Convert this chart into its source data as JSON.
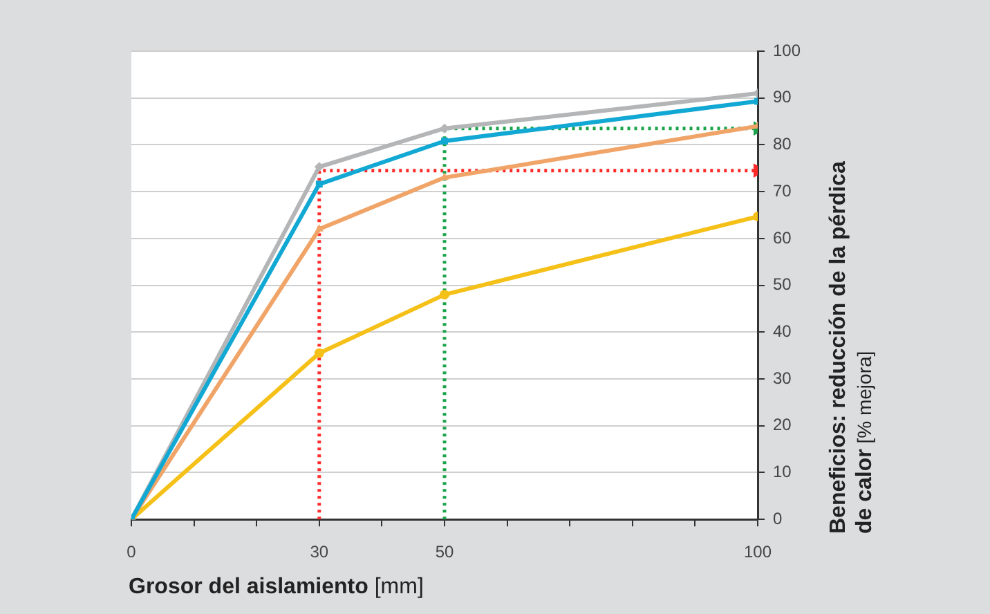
{
  "chart_data": {
    "type": "line",
    "xlabel": "Grosor del aislamiento [mm]",
    "ylabel": "Beneficios: reducción de la pérdica de calor [% mejora]",
    "xlim": [
      0,
      100
    ],
    "xticks": [
      0,
      {
        "value": 10,
        "label": null
      },
      {
        "value": 20,
        "label": null
      },
      30,
      {
        "value": 40,
        "label": null
      },
      50,
      {
        "value": 60,
        "label": null
      },
      {
        "value": 70,
        "label": null
      },
      {
        "value": 80,
        "label": null
      },
      {
        "value": 90,
        "label": null
      },
      100
    ],
    "ylim": [
      0,
      100
    ],
    "yticks": [
      0,
      10,
      20,
      30,
      40,
      50,
      60,
      70,
      80,
      90,
      100
    ],
    "grid": "y",
    "legend": false,
    "series": [
      {
        "color": "#ff2a2a",
        "x": [
          30,
          30,
          100
        ],
        "values": [
          0,
          74.5,
          74.5
        ],
        "line_style": "dotted",
        "marker": "none"
      },
      {
        "color": "#1aa34a",
        "x": [
          50,
          50,
          100
        ],
        "values": [
          0,
          83.5,
          83.5
        ],
        "line_style": "dotted",
        "marker": "none"
      },
      {
        "color": "#f5c018",
        "x": [
          0,
          30,
          50,
          100
        ],
        "values": [
          0,
          35.5,
          48,
          64.7
        ],
        "marker": "circle"
      },
      {
        "color": "#f0a468",
        "x": [
          0,
          30,
          50,
          100
        ],
        "values": [
          0,
          62,
          73,
          84
        ],
        "marker": "triangle"
      },
      {
        "color": "#b4b5b7",
        "x": [
          0,
          30,
          50,
          100
        ],
        "values": [
          0,
          75.3,
          83.5,
          91
        ],
        "marker": "diamond"
      },
      {
        "color": "#12a8d4",
        "x": [
          0,
          30,
          50,
          100
        ],
        "values": [
          0,
          71.6,
          80.8,
          89.3
        ],
        "marker": "square"
      }
    ]
  }
}
